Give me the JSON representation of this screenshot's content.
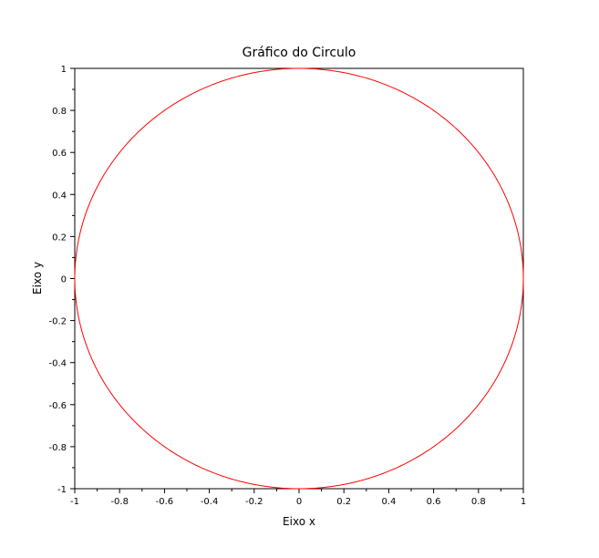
{
  "chart_data": {
    "type": "line",
    "title": "Gráfico do Circulo",
    "xlabel": "Eixo x",
    "ylabel": "Eixo y",
    "xlim": [
      -1,
      1
    ],
    "ylim": [
      -1,
      1
    ],
    "x_ticks": [
      -1,
      -0.8,
      -0.6,
      -0.4,
      -0.2,
      0,
      0.2,
      0.4,
      0.6,
      0.8,
      1
    ],
    "x_tick_labels": [
      "-1",
      "-0.8",
      "-0.6",
      "-0.4",
      "-0.2",
      "0",
      "0.2",
      "0.4",
      "0.6",
      "0.8",
      "1"
    ],
    "y_ticks": [
      -1,
      -0.8,
      -0.6,
      -0.4,
      -0.2,
      0,
      0.2,
      0.4,
      0.6,
      0.8,
      1
    ],
    "y_tick_labels": [
      "-1",
      "-0.8",
      "-0.6",
      "-0.4",
      "-0.2",
      "0",
      "0.2",
      "0.4",
      "0.6",
      "0.8",
      "1"
    ],
    "grid": false,
    "series": [
      {
        "equation": "x = cos(t), y = sin(t), t in [0, 2π]",
        "color": "#ff0000"
      }
    ]
  }
}
